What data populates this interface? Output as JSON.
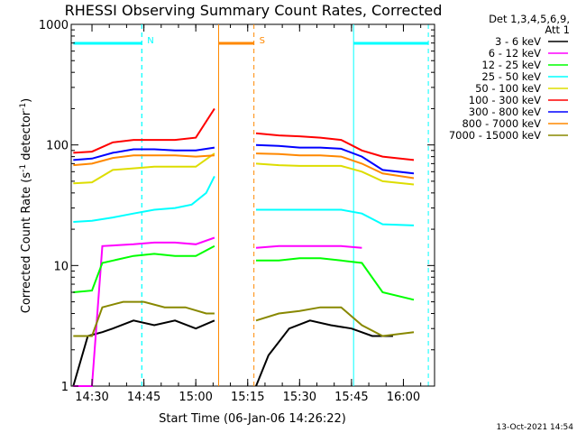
{
  "chart_data": {
    "type": "line",
    "title": "RHESSI Observing Summary Count Rates, Corrected",
    "xlabel": "Start Time (06-Jan-06 14:26:22)",
    "ylabel": "Corrected Count Rate (s",
    "ylabel_sup1": "-1",
    "ylabel_mid": " detector",
    "ylabel_sup2": "-1",
    "ylabel_end": ")",
    "y_scale": "log",
    "ylim": [
      1,
      1000
    ],
    "xlim_minutes": [
      14.4,
      16.15
    ],
    "x_ticks": [
      {
        "label": "14:30",
        "t": 14.5
      },
      {
        "label": "14:45",
        "t": 14.75
      },
      {
        "label": "15:00",
        "t": 15.0
      },
      {
        "label": "15:15",
        "t": 15.25
      },
      {
        "label": "15:30",
        "t": 15.5
      },
      {
        "label": "15:45",
        "t": 15.75
      },
      {
        "label": "16:00",
        "t": 16.0
      }
    ],
    "y_ticks": [
      {
        "label": "1",
        "v": 1
      },
      {
        "label": "10",
        "v": 10
      },
      {
        "label": "100",
        "v": 100
      },
      {
        "label": "1000",
        "v": 1000
      }
    ],
    "legend_header": "Det 1,3,4,5,6,9,",
    "legend_header2": "Att 1",
    "gap": [
      15.11,
      15.28
    ],
    "series": [
      {
        "name": "3 - 6 keV",
        "color": "#000000",
        "before": [
          [
            14.41,
            1.0
          ],
          [
            14.48,
            2.6
          ],
          [
            14.55,
            2.8
          ],
          [
            14.6,
            3.0
          ],
          [
            14.7,
            3.5
          ],
          [
            14.8,
            3.2
          ],
          [
            14.9,
            3.5
          ],
          [
            15.0,
            3.0
          ],
          [
            15.09,
            3.5
          ]
        ],
        "after": [
          [
            15.29,
            1.0
          ],
          [
            15.35,
            1.8
          ],
          [
            15.45,
            3.0
          ],
          [
            15.55,
            3.5
          ],
          [
            15.65,
            3.2
          ],
          [
            15.75,
            3.0
          ],
          [
            15.85,
            2.6
          ],
          [
            15.95,
            2.6
          ]
        ]
      },
      {
        "name": "6 - 12 keV",
        "color": "#ff00ff",
        "before": [
          [
            14.41,
            1.0
          ],
          [
            14.5,
            1.0
          ],
          [
            14.55,
            14.5
          ],
          [
            14.7,
            15.0
          ],
          [
            14.8,
            15.5
          ],
          [
            14.9,
            15.5
          ],
          [
            15.0,
            15.0
          ],
          [
            15.09,
            17.0
          ]
        ],
        "after": [
          [
            15.29,
            14.0
          ],
          [
            15.4,
            14.5
          ],
          [
            15.5,
            14.5
          ],
          [
            15.6,
            14.5
          ],
          [
            15.7,
            14.5
          ],
          [
            15.8,
            14.0
          ]
        ]
      },
      {
        "name": "12 - 25 keV",
        "color": "#00ff00",
        "before": [
          [
            14.41,
            6.0
          ],
          [
            14.5,
            6.2
          ],
          [
            14.55,
            10.5
          ],
          [
            14.7,
            12.0
          ],
          [
            14.8,
            12.5
          ],
          [
            14.9,
            12.0
          ],
          [
            15.0,
            12.0
          ],
          [
            15.09,
            14.5
          ]
        ],
        "after": [
          [
            15.29,
            11.0
          ],
          [
            15.4,
            11.0
          ],
          [
            15.5,
            11.5
          ],
          [
            15.6,
            11.5
          ],
          [
            15.7,
            11.0
          ],
          [
            15.8,
            10.5
          ],
          [
            15.9,
            6.0
          ],
          [
            16.05,
            5.2
          ]
        ]
      },
      {
        "name": "25 - 50 keV",
        "color": "#00ffff",
        "before": [
          [
            14.41,
            23.0
          ],
          [
            14.5,
            23.5
          ],
          [
            14.6,
            25.0
          ],
          [
            14.7,
            27.0
          ],
          [
            14.8,
            29.0
          ],
          [
            14.9,
            30.0
          ],
          [
            14.98,
            32.0
          ],
          [
            15.05,
            40.0
          ],
          [
            15.09,
            55.0
          ]
        ],
        "after": [
          [
            15.29,
            29.0
          ],
          [
            15.4,
            29.0
          ],
          [
            15.5,
            29.0
          ],
          [
            15.6,
            29.0
          ],
          [
            15.7,
            29.0
          ],
          [
            15.8,
            27.0
          ],
          [
            15.9,
            22.0
          ],
          [
            16.05,
            21.5
          ]
        ]
      },
      {
        "name": "50 - 100 keV",
        "color": "#dddd00",
        "before": [
          [
            14.41,
            48.0
          ],
          [
            14.5,
            49.0
          ],
          [
            14.6,
            62.0
          ],
          [
            14.7,
            64.0
          ],
          [
            14.8,
            66.0
          ],
          [
            14.9,
            66.0
          ],
          [
            15.0,
            66.0
          ],
          [
            15.09,
            85.0
          ]
        ],
        "after": [
          [
            15.29,
            70.0
          ],
          [
            15.4,
            68.0
          ],
          [
            15.5,
            67.0
          ],
          [
            15.6,
            67.0
          ],
          [
            15.7,
            67.0
          ],
          [
            15.8,
            60.0
          ],
          [
            15.9,
            50.0
          ],
          [
            16.05,
            47.0
          ]
        ]
      },
      {
        "name": "100 - 300 keV",
        "color": "#ff0000",
        "before": [
          [
            14.41,
            86.0
          ],
          [
            14.5,
            88.0
          ],
          [
            14.6,
            105.0
          ],
          [
            14.7,
            110.0
          ],
          [
            14.8,
            110.0
          ],
          [
            14.9,
            110.0
          ],
          [
            15.0,
            115.0
          ],
          [
            15.09,
            200.0
          ]
        ],
        "after": [
          [
            15.29,
            125.0
          ],
          [
            15.4,
            120.0
          ],
          [
            15.5,
            118.0
          ],
          [
            15.6,
            115.0
          ],
          [
            15.7,
            110.0
          ],
          [
            15.8,
            90.0
          ],
          [
            15.9,
            80.0
          ],
          [
            16.05,
            75.0
          ]
        ]
      },
      {
        "name": "300 - 800 keV",
        "color": "#0000ff",
        "before": [
          [
            14.41,
            75.0
          ],
          [
            14.5,
            77.0
          ],
          [
            14.6,
            86.0
          ],
          [
            14.7,
            92.0
          ],
          [
            14.8,
            92.0
          ],
          [
            14.9,
            90.0
          ],
          [
            15.0,
            90.0
          ],
          [
            15.09,
            95.0
          ]
        ],
        "after": [
          [
            15.29,
            100.0
          ],
          [
            15.4,
            98.0
          ],
          [
            15.5,
            95.0
          ],
          [
            15.6,
            95.0
          ],
          [
            15.7,
            93.0
          ],
          [
            15.8,
            80.0
          ],
          [
            15.9,
            62.0
          ],
          [
            16.05,
            58.0
          ]
        ]
      },
      {
        "name": "800 - 7000 keV",
        "color": "#ff8800",
        "before": [
          [
            14.41,
            68.0
          ],
          [
            14.5,
            70.0
          ],
          [
            14.6,
            78.0
          ],
          [
            14.7,
            82.0
          ],
          [
            14.8,
            82.0
          ],
          [
            14.9,
            82.0
          ],
          [
            15.0,
            80.0
          ],
          [
            15.09,
            82.0
          ]
        ],
        "after": [
          [
            15.29,
            85.0
          ],
          [
            15.4,
            84.0
          ],
          [
            15.5,
            82.0
          ],
          [
            15.6,
            82.0
          ],
          [
            15.7,
            80.0
          ],
          [
            15.8,
            70.0
          ],
          [
            15.9,
            58.0
          ],
          [
            16.05,
            53.0
          ]
        ]
      },
      {
        "name": "7000 - 15000 keV",
        "color": "#888800",
        "before": [
          [
            14.41,
            2.6
          ],
          [
            14.5,
            2.6
          ],
          [
            14.55,
            4.5
          ],
          [
            14.65,
            5.0
          ],
          [
            14.75,
            5.0
          ],
          [
            14.85,
            4.5
          ],
          [
            14.95,
            4.5
          ],
          [
            15.05,
            4.0
          ],
          [
            15.09,
            4.0
          ]
        ],
        "after": [
          [
            15.29,
            3.5
          ],
          [
            15.4,
            4.0
          ],
          [
            15.5,
            4.2
          ],
          [
            15.6,
            4.5
          ],
          [
            15.7,
            4.5
          ],
          [
            15.8,
            3.2
          ],
          [
            15.9,
            2.6
          ],
          [
            16.05,
            2.8
          ]
        ]
      }
    ],
    "markers": [
      {
        "label": "N",
        "color": "#00ffff",
        "start": 14.41,
        "end": 14.74
      },
      {
        "label": "S",
        "color": "#ff8800",
        "start": 15.11,
        "end": 15.28
      },
      {
        "label": "",
        "color": "#00ffff",
        "start": 15.76,
        "end": 16.12
      }
    ],
    "timestamp": "13-Oct-2021 14:54"
  }
}
